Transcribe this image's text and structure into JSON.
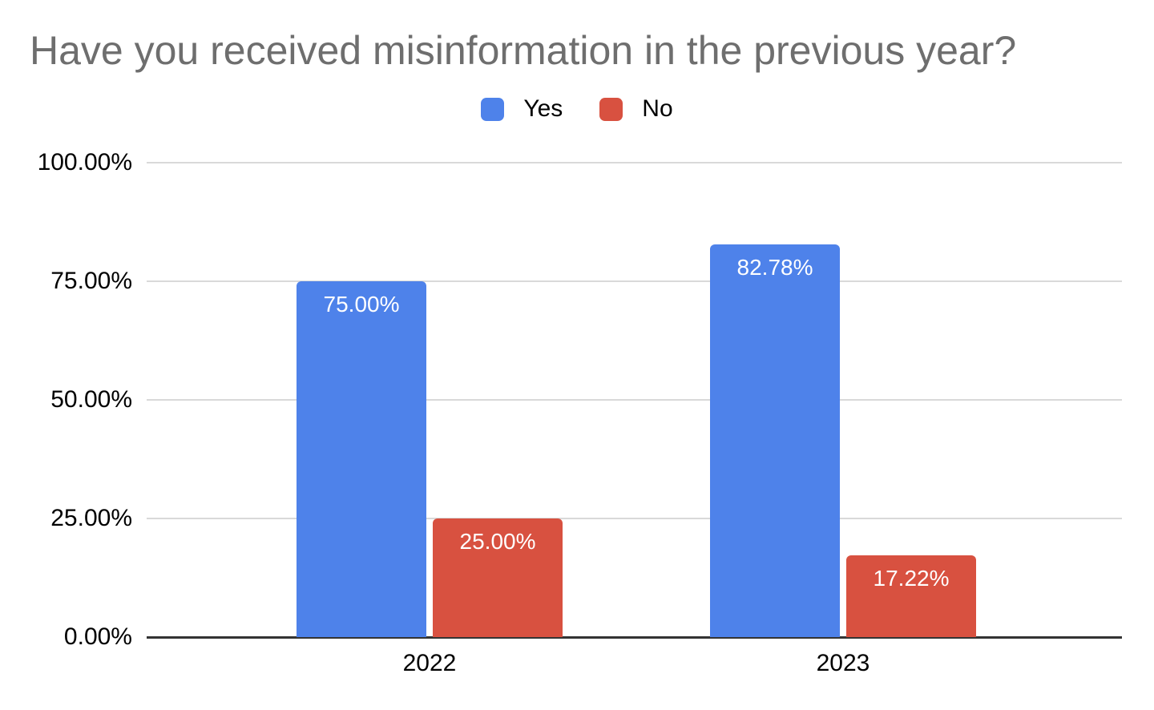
{
  "chart_data": {
    "type": "bar",
    "title": "Have you received misinformation in the previous year?",
    "categories": [
      "2022",
      "2023"
    ],
    "series": [
      {
        "name": "Yes",
        "color": "#4e82ea",
        "values": [
          75.0,
          82.78
        ],
        "labels": [
          "75.00%",
          "82.78%"
        ]
      },
      {
        "name": "No",
        "color": "#d85140",
        "values": [
          25.0,
          17.22
        ],
        "labels": [
          "25.00%",
          "17.22%"
        ]
      }
    ],
    "xlabel": "",
    "ylabel": "",
    "ylim": [
      0,
      100
    ],
    "yticks": [
      "100.00%",
      "75.00%",
      "50.00%",
      "25.00%",
      "0.00%"
    ],
    "grid": true,
    "legend_position": "top",
    "colors": {
      "background": "#ffffff",
      "title_text": "#6e6e6e",
      "axis_text": "#000000",
      "data_label_text": "#ffffff",
      "gridline": "#d9d9d9",
      "axis_line": "#333333"
    }
  }
}
